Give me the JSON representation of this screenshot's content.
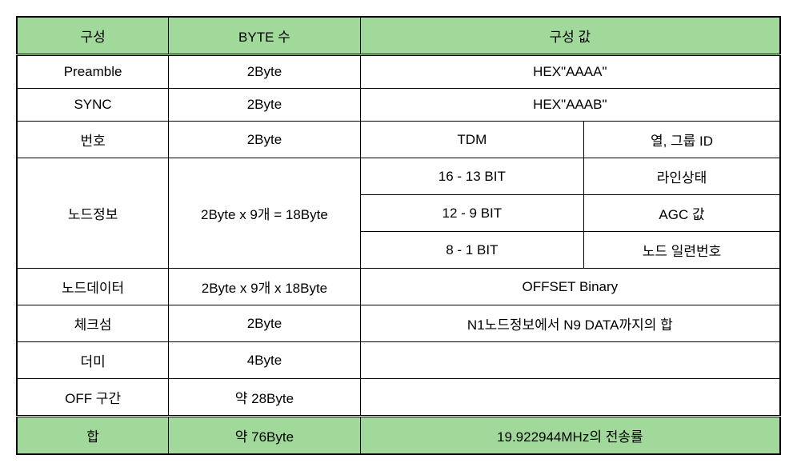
{
  "colors": {
    "header_bg": "#a1d99b",
    "footer_bg": "#a1d99b",
    "border": "#000000",
    "background": "#ffffff"
  },
  "headers": {
    "col1": "구성",
    "col2": "BYTE 수",
    "col3": "구성 값"
  },
  "rows": {
    "preamble": {
      "name": "Preamble",
      "bytes": "2Byte",
      "value": "HEX\"AAAA\""
    },
    "sync": {
      "name": "SYNC",
      "bytes": "2Byte",
      "value": "HEX\"AAAB\""
    },
    "number": {
      "name": "번호",
      "bytes": "2Byte",
      "val3": "TDM",
      "val4": "열, 그룹 ID"
    },
    "nodeinfo": {
      "name": "노드정보",
      "bytes": "2Byte x 9개 = 18Byte",
      "r1c3": "16 - 13 BIT",
      "r1c4": "라인상태",
      "r2c3": "12 - 9 BIT",
      "r2c4": "AGC 값",
      "r3c3": "8 - 1 BIT",
      "r3c4": "노드 일련번호"
    },
    "nodedata": {
      "name": "노드데이터",
      "bytes": "2Byte x 9개 x 18Byte",
      "value": "OFFSET Binary"
    },
    "checksum": {
      "name": "체크섬",
      "bytes": "2Byte",
      "value": "N1노드정보에서 N9 DATA까지의 합"
    },
    "dummy": {
      "name": "더미",
      "bytes": "4Byte",
      "value": ""
    },
    "off": {
      "name": "OFF 구간",
      "bytes": "약 28Byte",
      "value": ""
    }
  },
  "footer": {
    "name": "합",
    "bytes": "약 76Byte",
    "value": "19.922944MHz의 전송률"
  }
}
